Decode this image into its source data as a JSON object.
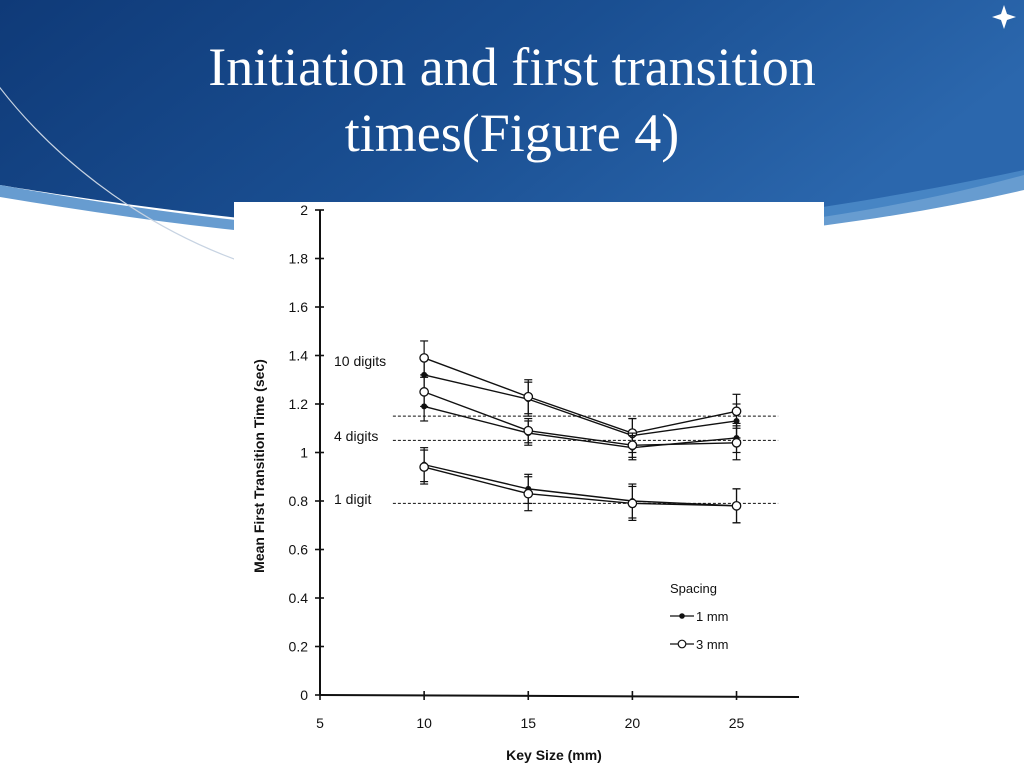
{
  "slide": {
    "title_line1": "Initiation and first transition",
    "title_line2": "times(Figure 4)"
  },
  "colors": {
    "banner_dark": "#143f7c",
    "banner_light": "#2d6cb0",
    "accent_swoosh": "#4c8bc8",
    "ink": "#111111"
  },
  "chart_data": {
    "type": "line",
    "title": "",
    "xlabel": "Key Size (mm)",
    "ylabel": "Mean First Transition Time (sec)",
    "xlim": [
      5,
      28
    ],
    "ylim": [
      0,
      2
    ],
    "xticks": [
      "5",
      "10",
      "15",
      "20",
      "25"
    ],
    "yticks": [
      "0",
      "0.2",
      "0.4",
      "0.6",
      "0.8",
      "1",
      "1.2",
      "1.4",
      "1.6",
      "1.8",
      "2"
    ],
    "grid": false,
    "legend": {
      "title": "Spacing",
      "position": "bottom-right",
      "entries": [
        {
          "label": "1 mm",
          "marker": "filled"
        },
        {
          "label": "3 mm",
          "marker": "open"
        }
      ]
    },
    "annotations": [
      {
        "text": "10 digits",
        "y": 1.37
      },
      {
        "text": "4 digits",
        "y": 1.06
      },
      {
        "text": "1 digit",
        "y": 0.8
      }
    ],
    "reference_lines": [
      1.15,
      1.05,
      0.79
    ],
    "x": [
      10,
      15,
      20,
      25
    ],
    "series": [
      {
        "group": "10 digits",
        "spacing": "1 mm",
        "marker": "filled",
        "values": [
          1.32,
          1.22,
          1.07,
          1.13
        ],
        "error": [
          0.07,
          0.07,
          0.07,
          0.07
        ]
      },
      {
        "group": "10 digits",
        "spacing": "3 mm",
        "marker": "open",
        "values": [
          1.39,
          1.23,
          1.08,
          1.17
        ],
        "error": [
          0.07,
          0.07,
          0.06,
          0.07
        ]
      },
      {
        "group": "4 digits",
        "spacing": "1 mm",
        "marker": "filled",
        "values": [
          1.19,
          1.08,
          1.02,
          1.06
        ],
        "error": [
          0.06,
          0.05,
          0.05,
          0.06
        ]
      },
      {
        "group": "4 digits",
        "spacing": "3 mm",
        "marker": "open",
        "values": [
          1.25,
          1.09,
          1.03,
          1.04
        ],
        "error": [
          0.06,
          0.05,
          0.05,
          0.07
        ]
      },
      {
        "group": "1 digit",
        "spacing": "1 mm",
        "marker": "filled",
        "values": [
          0.95,
          0.85,
          0.8,
          0.78
        ],
        "error": [
          0.07,
          0.06,
          0.07,
          0.07
        ]
      },
      {
        "group": "1 digit",
        "spacing": "3 mm",
        "marker": "open",
        "values": [
          0.94,
          0.83,
          0.79,
          0.78
        ],
        "error": [
          0.07,
          0.07,
          0.07,
          0.07
        ]
      }
    ]
  }
}
